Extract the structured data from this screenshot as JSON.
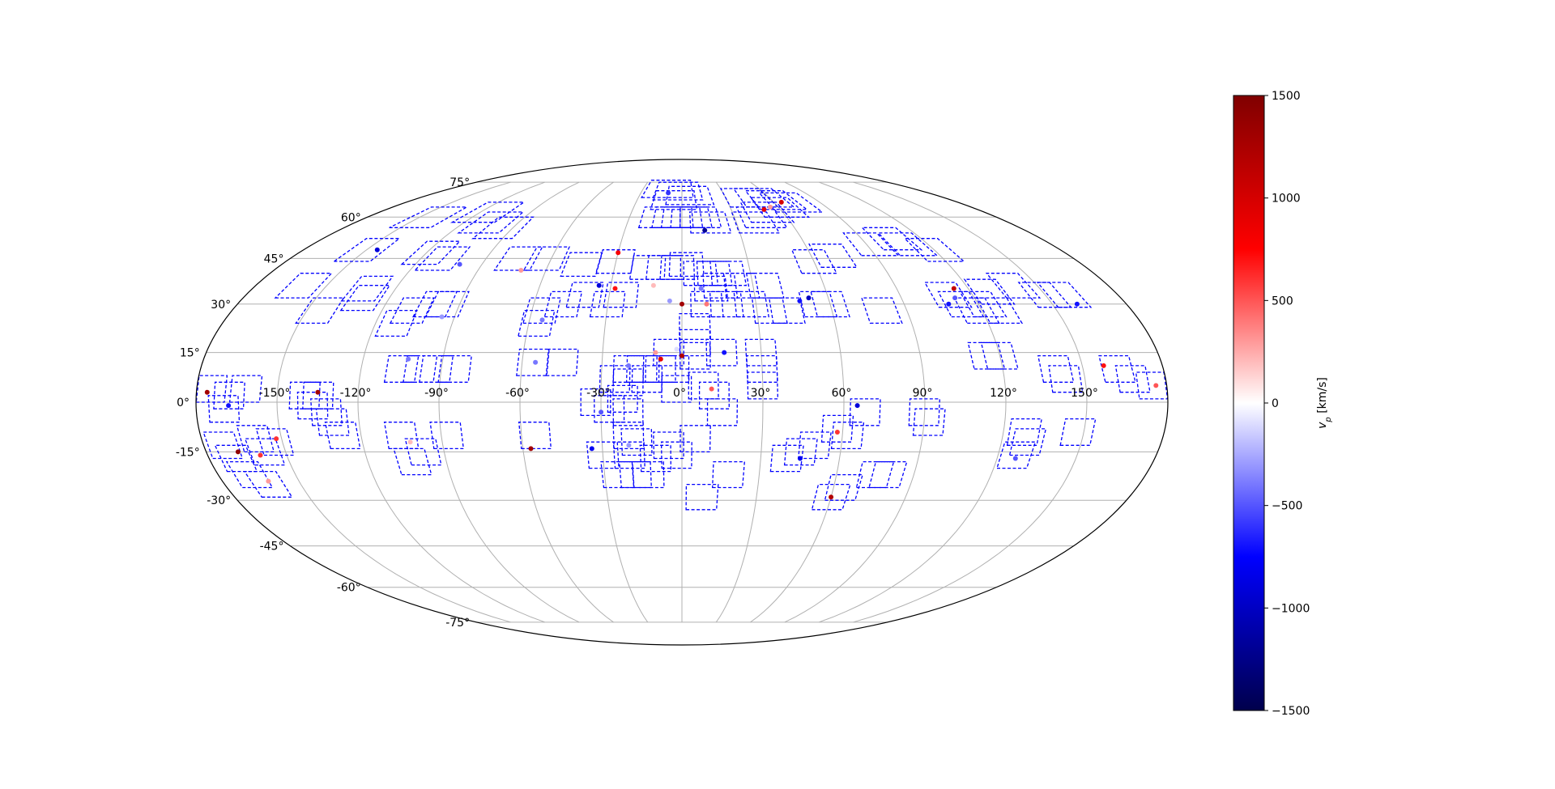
{
  "chart_data": {
    "type": "scatter",
    "projection": "mollweide",
    "grid": true,
    "lon_ticks": [
      "-150°",
      "-120°",
      "-90°",
      "-60°",
      "-30°",
      "0°",
      "30°",
      "60°",
      "90°",
      "120°",
      "150°"
    ],
    "lon_tick_values": [
      -150,
      -120,
      -90,
      -60,
      -30,
      0,
      30,
      60,
      90,
      120,
      150
    ],
    "lat_ticks": [
      "75°",
      "60°",
      "45°",
      "30°",
      "15°",
      "0°",
      "-15°",
      "-30°",
      "-45°",
      "-60°",
      "-75°"
    ],
    "lat_tick_values": [
      75,
      60,
      45,
      30,
      15,
      0,
      -15,
      -30,
      -45,
      -60,
      -75
    ],
    "colorbar": {
      "label": "v_p [km/s]",
      "label_main": "v",
      "label_sub": "p",
      "label_unit": " [km/s]",
      "range": [
        -1500,
        1500
      ],
      "ticks": [
        "1500",
        "1000",
        "500",
        "0",
        "−500",
        "−1000",
        "−1500"
      ],
      "tick_values": [
        1500,
        1000,
        500,
        0,
        -500,
        -1000,
        -1500
      ],
      "cmap": "seismic",
      "colors": [
        "#00004c",
        "#0000ff",
        "#ffffff",
        "#ff0000",
        "#800000"
      ]
    },
    "field_color": "#0000ff",
    "fields": [
      [
        -10,
        72
      ],
      [
        -3,
        71
      ],
      [
        -5,
        67
      ],
      [
        5,
        69
      ],
      [
        -12,
        60
      ],
      [
        -5,
        60
      ],
      [
        0,
        60
      ],
      [
        5,
        60
      ],
      [
        10,
        60
      ],
      [
        15,
        58
      ],
      [
        45,
        68
      ],
      [
        55,
        68
      ],
      [
        62,
        67
      ],
      [
        70,
        66
      ],
      [
        60,
        64
      ],
      [
        50,
        62
      ],
      [
        45,
        60
      ],
      [
        40,
        58
      ],
      [
        -145,
        60
      ],
      [
        -115,
        62
      ],
      [
        -105,
        58
      ],
      [
        -95,
        56
      ],
      [
        -150,
        48
      ],
      [
        -118,
        47
      ],
      [
        -110,
        45
      ],
      [
        -75,
        45
      ],
      [
        -62,
        45
      ],
      [
        -45,
        43
      ],
      [
        -30,
        44
      ],
      [
        -15,
        42
      ],
      [
        -8,
        42
      ],
      [
        -2,
        42
      ],
      [
        2,
        43
      ],
      [
        8,
        40
      ],
      [
        14,
        40
      ],
      [
        20,
        40
      ],
      [
        12,
        35
      ],
      [
        16,
        36
      ],
      [
        25,
        36
      ],
      [
        35,
        36
      ],
      [
        60,
        44
      ],
      [
        70,
        46
      ],
      [
        92,
        50
      ],
      [
        105,
        52
      ],
      [
        110,
        50
      ],
      [
        120,
        48
      ],
      [
        -160,
        36
      ],
      [
        -132,
        35
      ],
      [
        -130,
        32
      ],
      [
        -100,
        30
      ],
      [
        -95,
        30
      ],
      [
        -48,
        30
      ],
      [
        -30,
        30
      ],
      [
        -25,
        33
      ],
      [
        -40,
        33
      ],
      [
        10,
        30
      ],
      [
        18,
        30
      ],
      [
        28,
        30
      ],
      [
        35,
        28
      ],
      [
        42,
        28
      ],
      [
        55,
        30
      ],
      [
        60,
        30
      ],
      [
        80,
        28
      ],
      [
        110,
        33
      ],
      [
        113,
        30
      ],
      [
        118,
        28
      ],
      [
        122,
        30
      ],
      [
        127,
        28
      ],
      [
        128,
        34
      ],
      [
        140,
        36
      ],
      [
        150,
        33
      ],
      [
        158,
        33
      ],
      [
        -145,
        28
      ],
      [
        -112,
        24
      ],
      [
        -108,
        28
      ],
      [
        -57,
        24
      ],
      [
        -56,
        28
      ],
      [
        5,
        23
      ],
      [
        5,
        18
      ],
      [
        5,
        14
      ],
      [
        -5,
        15
      ],
      [
        -3,
        10
      ],
      [
        15,
        15
      ],
      [
        30,
        15
      ],
      [
        115,
        14
      ],
      [
        120,
        14
      ],
      [
        -105,
        10
      ],
      [
        -98,
        10
      ],
      [
        -92,
        10
      ],
      [
        -85,
        10
      ],
      [
        -56,
        12
      ],
      [
        -45,
        12
      ],
      [
        -20,
        10
      ],
      [
        -15,
        10
      ],
      [
        -8,
        10
      ],
      [
        -25,
        7
      ],
      [
        -20,
        6
      ],
      [
        -13,
        7
      ],
      [
        -2,
        4
      ],
      [
        8,
        5
      ],
      [
        12,
        2
      ],
      [
        30,
        10
      ],
      [
        30,
        5
      ],
      [
        140,
        10
      ],
      [
        143,
        7
      ],
      [
        163,
        10
      ],
      [
        168,
        7
      ],
      [
        175,
        5
      ],
      [
        -175,
        4
      ],
      [
        -168,
        2
      ],
      [
        -162,
        4
      ],
      [
        -170,
        -2
      ],
      [
        -140,
        2
      ],
      [
        -135,
        2
      ],
      [
        -137,
        -1
      ],
      [
        -32,
        0
      ],
      [
        -27,
        -2
      ],
      [
        -22,
        1
      ],
      [
        -20,
        -3
      ],
      [
        15,
        -3
      ],
      [
        -132,
        -3
      ],
      [
        -130,
        -6
      ],
      [
        -127,
        -10
      ],
      [
        -105,
        -10
      ],
      [
        -88,
        -10
      ],
      [
        -55,
        -10
      ],
      [
        -20,
        -10
      ],
      [
        -17,
        -12
      ],
      [
        -5,
        -13
      ],
      [
        5,
        -11
      ],
      [
        -160,
        -11
      ],
      [
        -153,
        -12
      ],
      [
        -173,
        -13
      ],
      [
        -170,
        -17
      ],
      [
        -168,
        -22
      ],
      [
        -163,
        -25
      ],
      [
        -158,
        -15
      ],
      [
        -103,
        -18
      ],
      [
        -98,
        -15
      ],
      [
        -30,
        -16
      ],
      [
        -20,
        -16
      ],
      [
        -10,
        -17
      ],
      [
        -2,
        -16
      ],
      [
        45,
        -15
      ],
      [
        50,
        -13
      ],
      [
        40,
        -17
      ],
      [
        58,
        -8
      ],
      [
        62,
        -10
      ],
      [
        68,
        -3
      ],
      [
        90,
        -3
      ],
      [
        92,
        -6
      ],
      [
        128,
        -9
      ],
      [
        130,
        -12
      ],
      [
        127,
        -16
      ],
      [
        148,
        -9
      ],
      [
        -25,
        -22
      ],
      [
        -18,
        -22
      ],
      [
        -13,
        -22
      ],
      [
        18,
        -22
      ],
      [
        75,
        -22
      ],
      [
        80,
        -22
      ],
      [
        64,
        -26
      ],
      [
        60,
        -29
      ],
      [
        8,
        -29
      ]
    ],
    "points": [
      {
        "lon": -10,
        "lat": 70,
        "v": -600
      },
      {
        "lon": 12,
        "lat": 55,
        "v": -1200
      },
      {
        "lon": 50,
        "lat": 63,
        "v": 900
      },
      {
        "lon": 65,
        "lat": 66,
        "v": 1000
      },
      {
        "lon": 55,
        "lat": 64,
        "v": 300
      },
      {
        "lon": -145,
        "lat": 48,
        "v": -900
      },
      {
        "lon": -100,
        "lat": 43,
        "v": -500
      },
      {
        "lon": -71,
        "lat": 41,
        "v": 300
      },
      {
        "lon": -30,
        "lat": 47,
        "v": 800
      },
      {
        "lon": -35,
        "lat": 36,
        "v": -900
      },
      {
        "lon": -28,
        "lat": 35,
        "v": 700
      },
      {
        "lon": -12,
        "lat": 36,
        "v": 200
      },
      {
        "lon": 8,
        "lat": 35,
        "v": -400
      },
      {
        "lon": 10,
        "lat": 30,
        "v": 400
      },
      {
        "lon": 0,
        "lat": 30,
        "v": 1300
      },
      {
        "lon": -5,
        "lat": 31,
        "v": -300
      },
      {
        "lon": 52,
        "lat": 32,
        "v": -1000
      },
      {
        "lon": 48,
        "lat": 31,
        "v": -700
      },
      {
        "lon": 114,
        "lat": 35,
        "v": 1100
      },
      {
        "lon": 112,
        "lat": 32,
        "v": -500
      },
      {
        "lon": 108,
        "lat": 30,
        "v": -700
      },
      {
        "lon": 160,
        "lat": 30,
        "v": -700
      },
      {
        "lon": -95,
        "lat": 26,
        "v": -300
      },
      {
        "lon": -55,
        "lat": 25,
        "v": -400
      },
      {
        "lon": -2,
        "lat": 16,
        "v": -100
      },
      {
        "lon": 0,
        "lat": 14,
        "v": 1200
      },
      {
        "lon": -10,
        "lat": 15,
        "v": 300
      },
      {
        "lon": 16,
        "lat": 15,
        "v": -700
      },
      {
        "lon": -103,
        "lat": 13,
        "v": -400
      },
      {
        "lon": -8,
        "lat": 13,
        "v": 900
      },
      {
        "lon": -20,
        "lat": 11,
        "v": -400
      },
      {
        "lon": -55,
        "lat": 12,
        "v": -400
      },
      {
        "lon": 158,
        "lat": 11,
        "v": 700
      },
      {
        "lon": 176,
        "lat": 5,
        "v": 500
      },
      {
        "lon": -176,
        "lat": 3,
        "v": 1300
      },
      {
        "lon": -135,
        "lat": 3,
        "v": 1300
      },
      {
        "lon": -168,
        "lat": -1,
        "v": -700
      },
      {
        "lon": -30,
        "lat": -3,
        "v": -500
      },
      {
        "lon": 11,
        "lat": 4,
        "v": 500
      },
      {
        "lon": 65,
        "lat": -1,
        "v": -900
      },
      {
        "lon": -168,
        "lat": -15,
        "v": 1400
      },
      {
        "lon": -152,
        "lat": -11,
        "v": 600
      },
      {
        "lon": -160,
        "lat": -16,
        "v": 600
      },
      {
        "lon": -102,
        "lat": -12,
        "v": 200
      },
      {
        "lon": -57,
        "lat": -14,
        "v": 1300
      },
      {
        "lon": -34,
        "lat": -14,
        "v": -800
      },
      {
        "lon": -20,
        "lat": -13,
        "v": -300
      },
      {
        "lon": 45,
        "lat": -17,
        "v": -800
      },
      {
        "lon": 58,
        "lat": -9,
        "v": 600
      },
      {
        "lon": 127,
        "lat": -17,
        "v": -500
      },
      {
        "lon": 60,
        "lat": -29,
        "v": 1200
      },
      {
        "lon": -162,
        "lat": -24,
        "v": 300
      }
    ]
  }
}
